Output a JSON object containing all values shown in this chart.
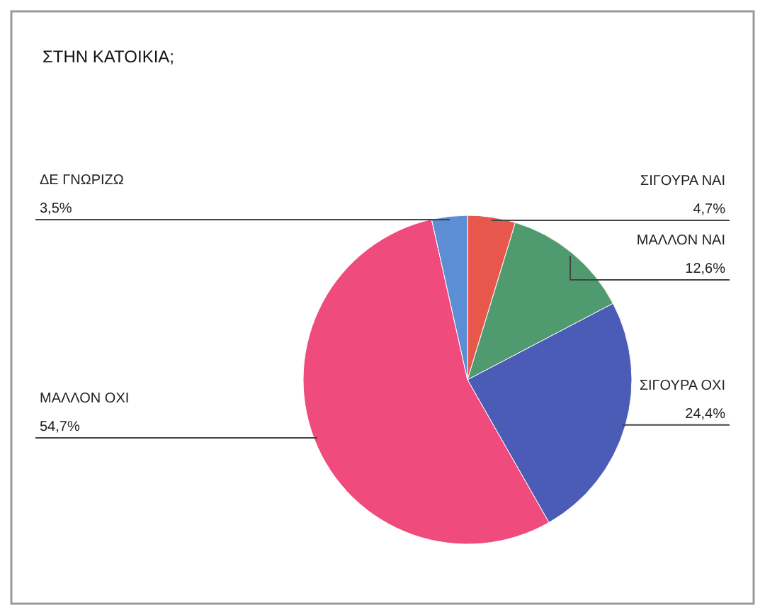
{
  "chart_data": {
    "type": "pie",
    "title": "ΣΤΗΝ ΚΑΤΟΙΚΙΑ;",
    "categories": [
      "ΣΙΓΟΥΡΑ ΝΑΙ",
      "ΜΑΛΛΟΝ ΝΑΙ",
      "ΣΙΓΟΥΡΑ ΟΧΙ",
      "ΜΑΛΛΟΝ ΟΧΙ",
      "ΔΕ ΓΝΩΡΙΖΩ"
    ],
    "values": [
      4.7,
      12.6,
      24.4,
      54.7,
      3.5
    ],
    "value_labels": [
      "4,7%",
      "12,6%",
      "24,4%",
      "54,7%",
      "3,5%"
    ],
    "colors": [
      "#e8574c",
      "#4f9a6e",
      "#4a5cb5",
      "#ef4b7c",
      "#5b8ed4"
    ]
  }
}
